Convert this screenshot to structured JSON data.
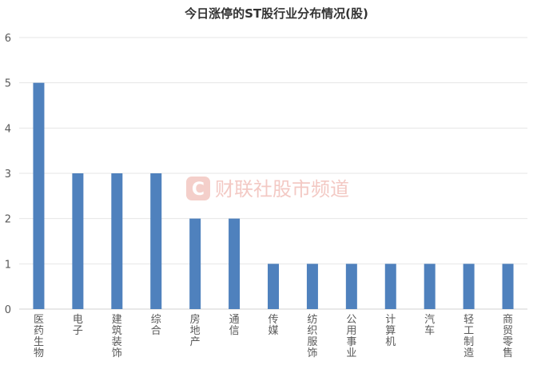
{
  "chart_data": {
    "type": "bar",
    "title": "今日涨停的ST股行业分布情况(股)",
    "categories": [
      "医药生物",
      "电子",
      "建筑装饰",
      "综合",
      "房地产",
      "通信",
      "传媒",
      "纺织服饰",
      "公用事业",
      "计算机",
      "汽车",
      "轻工制造",
      "商贸零售"
    ],
    "values": [
      5,
      3,
      3,
      3,
      2,
      2,
      1,
      1,
      1,
      1,
      1,
      1,
      1
    ],
    "yticks": [
      "0",
      "1",
      "2",
      "3",
      "4",
      "5",
      "6"
    ],
    "ylim": [
      0,
      6
    ],
    "grid": true,
    "bar_color": "#4f81bd"
  },
  "watermark": {
    "text": "财联社股市频道",
    "logo_letter": "C",
    "color": "#e8594a"
  }
}
